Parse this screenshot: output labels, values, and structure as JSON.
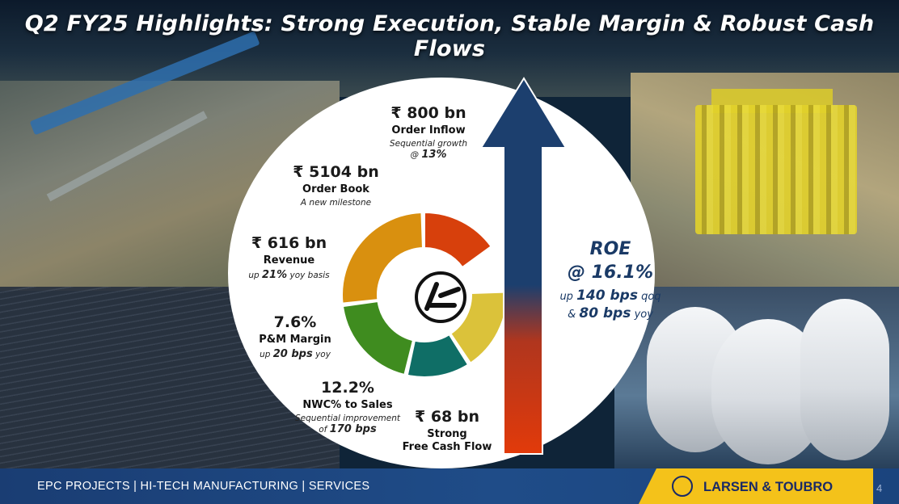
{
  "title": "Q2 FY25 Highlights: Strong Execution, Stable Margin & Robust Cash Flows",
  "stats": {
    "order_inflow": {
      "value": "₹ 800 bn",
      "label": "Order Inflow",
      "sub_prefix": "Sequential growth",
      "sub_pre2": "@",
      "sub_bold": "13%"
    },
    "order_book": {
      "value": "₹ 5104 bn",
      "label": "Order Book",
      "sub": "A new milestone"
    },
    "revenue": {
      "value": "₹ 616 bn",
      "label": "Revenue",
      "sub_pre": "up",
      "sub_bold": "21%",
      "sub_post": "yoy basis"
    },
    "margin": {
      "value": "7.6%",
      "label": "P&M Margin",
      "sub_pre": "up",
      "sub_bold": "20 bps",
      "sub_post": "yoy"
    },
    "nwc": {
      "value": "12.2%",
      "label": "NWC% to Sales",
      "sub_prefix": "Sequential improvement",
      "sub_pre2": "of",
      "sub_bold": "170 bps"
    },
    "fcf": {
      "value": "₹ 68 bn",
      "label1": "Strong",
      "label2": "Free Cash Flow"
    }
  },
  "roe": {
    "title": "ROE",
    "value": "@ 16.1%",
    "line1_pre": "up",
    "line1_bold": "140 bps",
    "line1_post": "qoq",
    "line2_pre": "&",
    "line2_bold": "80 bps",
    "line2_post": "yoy"
  },
  "footer": {
    "segments": "EPC PROJECTS  |  HI-TECH MANUFACTURING |  SERVICES",
    "brand": "LARSEN & TOUBRO",
    "page": "4"
  },
  "colors": {
    "segments": [
      "#d7400c",
      "#d9900f",
      "#3f8c1f",
      "#0f6e66",
      "#dbc23a"
    ],
    "arrow_blue": "#1c3f6e",
    "arrow_red": "#e23a0a",
    "footer_blue": "#1f4c88",
    "brand_yellow": "#f4c21a"
  }
}
